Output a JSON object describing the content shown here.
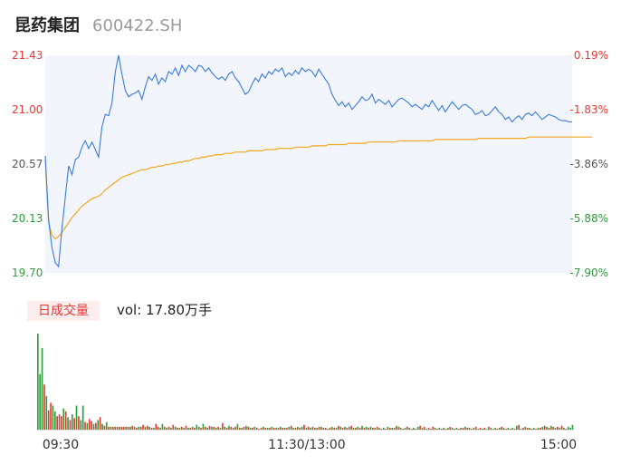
{
  "header": {
    "name": "昆药集团",
    "code": "600422.SH"
  },
  "chart_data": [
    {
      "type": "line",
      "y_ticks": [
        "21.43",
        "21.00",
        "20.57",
        "20.13",
        "19.70"
      ],
      "pct_ticks": [
        "0.19%",
        "-1.83%",
        "-3.86%",
        "-5.88%",
        "-7.90%"
      ],
      "ylim": [
        19.7,
        21.43
      ],
      "x_ticks": [
        "09:30",
        "11:30/13:00",
        "15:00"
      ],
      "series": [
        {
          "color": "#3b7be0",
          "values": [
            20.63,
            20.12,
            19.9,
            19.78,
            19.75,
            20.05,
            20.3,
            20.55,
            20.48,
            20.6,
            20.62,
            20.7,
            20.75,
            20.69,
            20.74,
            20.68,
            20.62,
            20.86,
            20.96,
            20.95,
            21.05,
            21.3,
            21.43,
            21.28,
            21.15,
            21.1,
            21.12,
            21.13,
            21.15,
            21.08,
            21.18,
            21.26,
            21.23,
            21.28,
            21.2,
            21.25,
            21.22,
            21.3,
            21.28,
            21.33,
            21.27,
            21.35,
            21.3,
            21.35,
            21.33,
            21.3,
            21.35,
            21.34,
            21.3,
            21.33,
            21.29,
            21.26,
            21.24,
            21.26,
            21.23,
            21.28,
            21.3,
            21.25,
            21.22,
            21.17,
            21.12,
            21.14,
            21.2,
            21.25,
            21.22,
            21.28,
            21.25,
            21.3,
            21.28,
            21.32,
            21.3,
            21.33,
            21.26,
            21.29,
            21.27,
            21.31,
            21.28,
            21.33,
            21.3,
            21.32,
            21.3,
            21.26,
            21.32,
            21.28,
            21.24,
            21.2,
            21.12,
            21.07,
            21.03,
            21.06,
            21.02,
            21.05,
            21.0,
            21.03,
            21.06,
            21.1,
            21.07,
            21.08,
            21.12,
            21.05,
            21.08,
            21.06,
            21.04,
            21.07,
            21.02,
            21.05,
            21.08,
            21.09,
            21.07,
            21.05,
            21.02,
            21.04,
            21.02,
            21.0,
            21.04,
            21.02,
            21.07,
            21.03,
            20.99,
            21.03,
            20.98,
            21.02,
            21.06,
            21.03,
            21.0,
            21.03,
            21.04,
            21.02,
            21.0,
            20.96,
            20.97,
            20.99,
            20.95,
            20.96,
            20.99,
            21.02,
            20.98,
            20.96,
            20.92,
            20.94,
            20.9,
            20.93,
            20.95,
            20.92,
            20.96,
            20.97,
            20.95,
            20.98,
            20.95,
            20.92,
            20.94,
            20.96,
            20.95,
            20.94,
            20.92,
            20.91,
            20.91,
            20.9,
            20.9
          ]
        },
        {
          "color": "#f0a81f",
          "values": [
            20.6,
            20.1,
            20.0,
            19.97,
            19.99,
            20.02,
            20.06,
            20.1,
            20.14,
            20.17,
            20.2,
            20.23,
            20.25,
            20.27,
            20.29,
            20.3,
            20.31,
            20.33,
            20.36,
            20.38,
            20.4,
            20.42,
            20.44,
            20.46,
            20.47,
            20.48,
            20.49,
            20.5,
            20.51,
            20.52,
            20.52,
            20.53,
            20.54,
            20.54,
            20.55,
            20.55,
            20.56,
            20.56,
            20.57,
            20.57,
            20.58,
            20.58,
            20.59,
            20.59,
            20.6,
            20.61,
            20.61,
            20.62,
            20.62,
            20.63,
            20.63,
            20.64,
            20.64,
            20.64,
            20.65,
            20.65,
            20.65,
            20.66,
            20.66,
            20.66,
            20.66,
            20.67,
            20.67,
            20.67,
            20.67,
            20.67,
            20.68,
            20.68,
            20.68,
            20.68,
            20.69,
            20.69,
            20.69,
            20.69,
            20.69,
            20.7,
            20.7,
            20.7,
            20.7,
            20.7,
            20.71,
            20.71,
            20.71,
            20.71,
            20.71,
            20.72,
            20.72,
            20.72,
            20.72,
            20.72,
            20.72,
            20.73,
            20.73,
            20.73,
            20.73,
            20.73,
            20.73,
            20.74,
            20.74,
            20.74,
            20.74,
            20.74,
            20.74,
            20.74,
            20.74,
            20.74,
            20.75,
            20.75,
            20.75,
            20.75,
            20.75,
            20.75,
            20.75,
            20.75,
            20.75,
            20.75,
            20.75,
            20.76,
            20.76,
            20.76,
            20.76,
            20.76,
            20.76,
            20.76,
            20.76,
            20.76,
            20.76,
            20.76,
            20.76,
            20.76,
            20.77,
            20.77,
            20.77,
            20.77,
            20.77,
            20.77,
            20.77,
            20.77,
            20.77,
            20.77,
            20.77,
            20.77,
            20.77,
            20.77,
            20.77,
            20.78,
            20.78,
            20.78,
            20.78,
            20.78,
            20.78,
            20.78,
            20.78,
            20.78,
            20.78,
            20.78,
            20.78,
            20.78,
            20.78,
            20.78,
            20.78,
            20.78,
            20.78,
            20.78,
            20.78
          ]
        }
      ],
      "colors": {
        "up": "#e53935",
        "down": "#2e9d3e",
        "grid_fill": "#f2f5fb"
      }
    },
    {
      "type": "bar",
      "tab_label": "日成交量",
      "vol_label": "vol: 17.80万手",
      "ylim": [
        0,
        100
      ],
      "values": [
        100,
        58,
        85,
        47,
        35,
        20,
        28,
        25,
        19,
        14,
        16,
        14,
        22,
        19,
        13,
        10,
        16,
        12,
        25,
        14,
        10,
        25,
        8,
        7,
        11,
        9,
        6,
        7,
        10,
        13,
        6,
        4,
        8,
        3,
        3,
        3,
        3,
        3,
        3,
        3,
        3,
        3,
        3,
        3,
        4,
        3,
        2,
        3,
        3,
        5,
        3,
        4,
        3,
        2,
        2,
        6,
        3,
        2,
        6,
        3,
        2,
        3,
        2,
        5,
        3,
        2,
        2,
        3,
        2,
        4,
        2,
        2,
        3,
        2,
        5,
        3,
        2,
        6,
        3,
        2,
        4,
        3,
        3,
        2,
        3,
        2,
        7,
        3,
        2,
        4,
        3,
        2,
        3,
        6,
        2,
        2,
        3,
        4,
        3,
        2,
        2,
        3,
        2,
        1,
        2,
        3,
        2,
        2,
        2,
        3,
        2,
        2,
        2,
        3,
        2,
        2,
        2,
        3,
        4,
        2,
        2,
        3,
        2,
        3,
        5,
        2,
        3,
        2,
        3,
        2,
        2,
        3,
        3,
        2,
        2,
        1,
        2,
        3,
        2,
        2,
        4,
        3,
        2,
        3,
        2,
        3,
        4,
        2,
        2,
        3,
        2,
        4,
        2,
        3,
        2,
        3,
        2,
        2,
        3,
        2,
        1,
        2,
        1,
        3,
        2,
        2,
        2,
        4,
        3,
        2,
        1,
        2,
        3,
        2,
        1,
        2,
        1,
        3,
        4,
        2,
        3,
        1,
        2,
        1,
        3,
        2,
        1,
        2,
        1,
        2,
        1,
        2,
        3,
        2,
        1,
        2,
        1,
        2,
        2,
        3,
        2,
        2,
        1,
        2,
        3,
        1,
        2,
        1,
        2,
        1,
        3,
        2,
        1,
        2,
        1,
        2,
        3,
        2,
        1,
        2,
        1,
        2,
        1,
        4,
        5,
        1,
        2,
        3,
        2,
        2,
        1,
        2,
        1,
        2,
        2,
        3,
        4,
        3,
        2,
        4,
        3,
        2,
        3,
        2,
        4,
        2,
        1,
        3,
        2,
        5
      ],
      "directions": [
        "d",
        "d",
        "d",
        "u",
        "d",
        "u",
        "u",
        "d",
        "d",
        "u",
        "u",
        "u",
        "d",
        "u",
        "d",
        "u",
        "d",
        "u",
        "d",
        "u",
        "d",
        "d",
        "u",
        "d",
        "u",
        "u",
        "d",
        "u",
        "d",
        "u",
        "d",
        "u",
        "d",
        "u",
        "d",
        "u",
        "d",
        "u",
        "d",
        "u",
        "u",
        "d",
        "u",
        "d",
        "u",
        "d",
        "u",
        "d",
        "u",
        "u",
        "d",
        "u",
        "d",
        "u",
        "d",
        "u",
        "u",
        "d",
        "d",
        "u",
        "d",
        "u",
        "d",
        "u",
        "d",
        "u",
        "d",
        "u",
        "d",
        "u",
        "d",
        "u",
        "d",
        "u",
        "d",
        "d",
        "u",
        "d",
        "u",
        "d",
        "u",
        "d",
        "u",
        "d",
        "u",
        "d",
        "u",
        "d",
        "u",
        "d",
        "u",
        "d",
        "u",
        "d",
        "u",
        "d",
        "u",
        "d",
        "u",
        "d",
        "u",
        "d",
        "u",
        "d",
        "u",
        "d",
        "u",
        "d",
        "u",
        "d",
        "u",
        "d",
        "u",
        "d",
        "u",
        "d",
        "u",
        "d",
        "u",
        "d",
        "u",
        "d",
        "u",
        "d",
        "u",
        "d",
        "u",
        "d",
        "u",
        "d",
        "u",
        "d",
        "u",
        "d",
        "u",
        "d",
        "u",
        "d",
        "u",
        "d",
        "u",
        "d",
        "u",
        "d",
        "u",
        "d",
        "u",
        "d",
        "u",
        "d",
        "u",
        "d",
        "u",
        "d",
        "u",
        "d",
        "u",
        "d",
        "u",
        "d",
        "u",
        "d",
        "u",
        "d",
        "u",
        "d",
        "u",
        "d",
        "u",
        "d",
        "u",
        "d",
        "u",
        "d",
        "u",
        "d",
        "u",
        "d",
        "u",
        "d",
        "u",
        "d",
        "u",
        "d",
        "u",
        "d",
        "u",
        "d",
        "u",
        "d",
        "u",
        "d",
        "u",
        "d",
        "u",
        "d",
        "u",
        "d",
        "u",
        "d",
        "u",
        "d",
        "u",
        "d",
        "u",
        "d",
        "u",
        "d",
        "u",
        "d",
        "u",
        "d",
        "u",
        "d",
        "u",
        "d",
        "u",
        "d",
        "u",
        "d",
        "u",
        "d",
        "u",
        "d",
        "u",
        "d",
        "u",
        "d",
        "u",
        "d",
        "u",
        "d",
        "u",
        "d",
        "u",
        "d",
        "u",
        "d",
        "u",
        "d",
        "u",
        "d",
        "u",
        "d",
        "u",
        "d",
        "u",
        "d"
      ]
    }
  ]
}
